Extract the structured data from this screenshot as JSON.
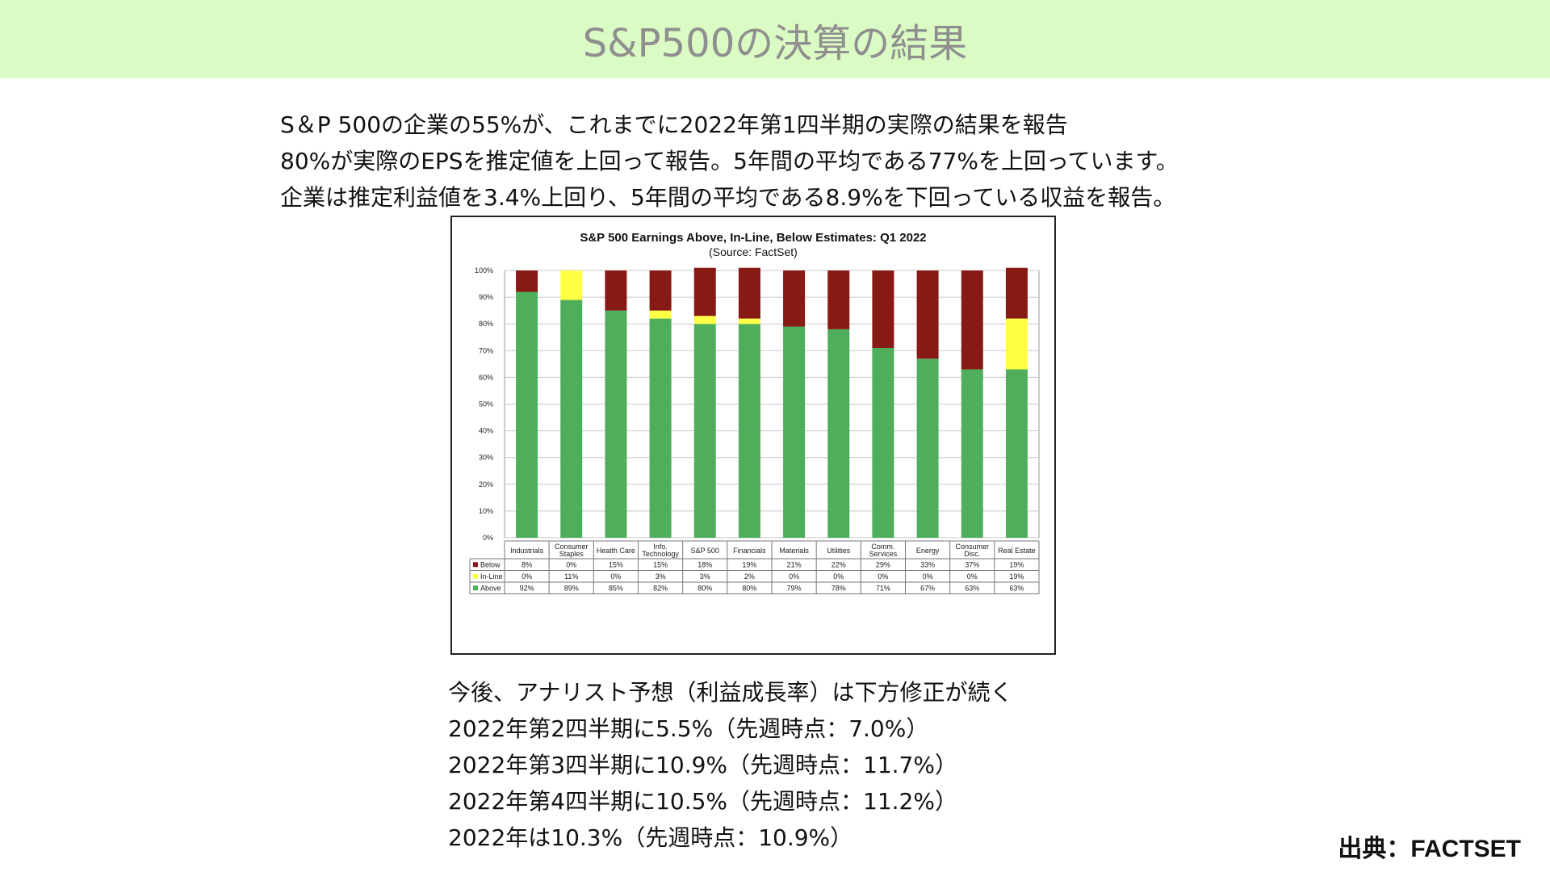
{
  "header": {
    "title": "S&P500の決算の結果"
  },
  "intro": {
    "lines": [
      "S＆P 500の企業の55%が、これまでに2022年第1四半期の実際の結果を報告",
      "80%が実際のEPSを推定値を上回って報告。5年間の平均である77%を上回っています。",
      "企業は推定利益値を3.4%上回り、5年間の平均である8.9%を下回っている収益を報告。"
    ]
  },
  "chart_data": {
    "type": "bar",
    "stacked": true,
    "title": "S&P 500 Earnings Above, In-Line, Below Estimates: Q1 2022",
    "subtitle": "(Source: FactSet)",
    "categories": [
      [
        "Industrials"
      ],
      [
        "Consumer",
        "Staples"
      ],
      [
        "Health Care"
      ],
      [
        "Info.",
        "Technology"
      ],
      [
        "S&P 500"
      ],
      [
        "Financials"
      ],
      [
        "Materials"
      ],
      [
        "Utilities"
      ],
      [
        "Comm.",
        "Services"
      ],
      [
        "Energy"
      ],
      [
        "Consumer",
        "Disc."
      ],
      [
        "Real Estate"
      ]
    ],
    "series": [
      {
        "name": "Below",
        "color": "#871a14",
        "values": [
          8,
          0,
          15,
          15,
          18,
          19,
          21,
          22,
          29,
          33,
          37,
          19
        ]
      },
      {
        "name": "In-Line",
        "color": "#ffff44",
        "values": [
          0,
          11,
          0,
          3,
          3,
          2,
          0,
          0,
          0,
          0,
          0,
          19
        ]
      },
      {
        "name": "Above",
        "color": "#4fae5b",
        "values": [
          92,
          89,
          85,
          82,
          80,
          80,
          79,
          78,
          71,
          67,
          63,
          63
        ]
      }
    ],
    "stack_order": [
      "Above",
      "In-Line",
      "Below"
    ],
    "yticks": [
      "0%",
      "10%",
      "20%",
      "30%",
      "40%",
      "50%",
      "60%",
      "70%",
      "80%",
      "90%",
      "100%"
    ],
    "ylim": [
      0,
      100
    ],
    "grid": true,
    "legend": "data-table"
  },
  "outlook": {
    "lines": [
      "今後、アナリスト予想（利益成長率）は下方修正が続く",
      "2022年第2四半期に5.5%（先週時点：7.0%）",
      "2022年第3四半期に10.9%（先週時点：11.7%）",
      "2022年第4四半期に10.5%（先週時点：11.2%）",
      "2022年は10.3%（先週時点：10.9%）"
    ]
  },
  "source": {
    "label": "出典：FACTSET"
  }
}
